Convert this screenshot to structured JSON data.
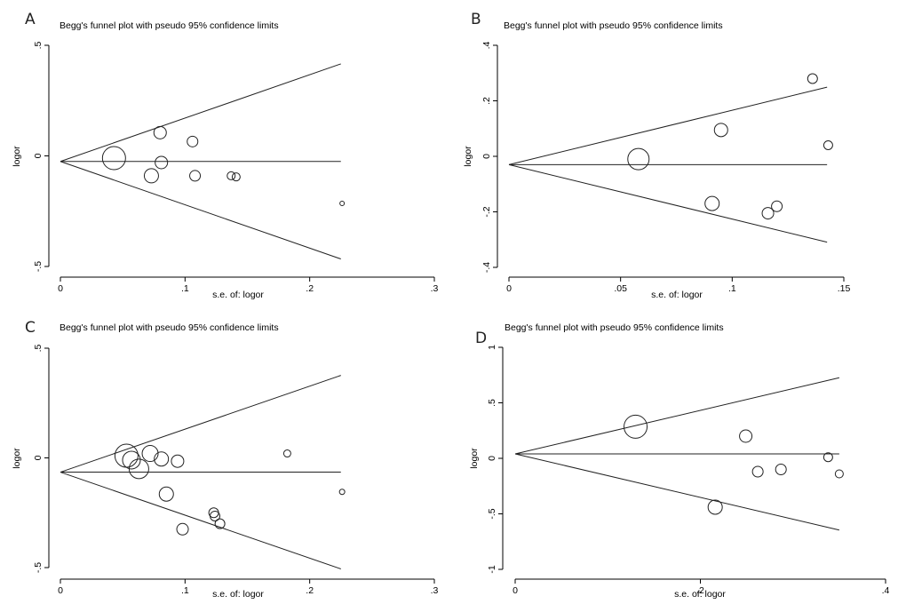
{
  "chart_data": [
    {
      "panel_label": "A",
      "type": "scatter",
      "title": "Begg's funnel plot with pseudo 95% confidence limits",
      "xlabel": "s.e. of: logor",
      "ylabel": "logor",
      "xlim": [
        0,
        0.3
      ],
      "ylim": [
        -0.5,
        0.5
      ],
      "xticks": [
        {
          "v": 0,
          "label": "0"
        },
        {
          "v": 0.1,
          "label": ".1"
        },
        {
          "v": 0.2,
          "label": ".2"
        },
        {
          "v": 0.3,
          "label": ".3"
        }
      ],
      "yticks": [
        {
          "v": -0.5,
          "label": "-.5"
        },
        {
          "v": 0,
          "label": "0"
        },
        {
          "v": 0.5,
          "label": ".5"
        }
      ],
      "pooled_estimate": -0.025,
      "pseudo_limit_max_se": 0.225,
      "points": [
        {
          "se": 0.043,
          "logor": -0.01,
          "size": 13
        },
        {
          "se": 0.073,
          "logor": -0.09,
          "size": 8
        },
        {
          "se": 0.08,
          "logor": 0.105,
          "size": 7
        },
        {
          "se": 0.081,
          "logor": -0.03,
          "size": 7
        },
        {
          "se": 0.106,
          "logor": 0.065,
          "size": 6
        },
        {
          "se": 0.108,
          "logor": -0.09,
          "size": 6
        },
        {
          "se": 0.137,
          "logor": -0.09,
          "size": 4.5
        },
        {
          "se": 0.141,
          "logor": -0.095,
          "size": 4.5
        },
        {
          "se": 0.226,
          "logor": -0.215,
          "size": 2.5
        }
      ]
    },
    {
      "panel_label": "B",
      "type": "scatter",
      "title": "Begg's funnel plot with pseudo 95% confidence limits",
      "xlabel": "s.e. of: logor",
      "ylabel": "logor",
      "xlim": [
        0,
        0.15
      ],
      "ylim": [
        -0.4,
        0.4
      ],
      "xticks": [
        {
          "v": 0,
          "label": "0"
        },
        {
          "v": 0.05,
          "label": ".05"
        },
        {
          "v": 0.1,
          "label": ".1"
        },
        {
          "v": 0.15,
          "label": ".15"
        }
      ],
      "yticks": [
        {
          "v": -0.4,
          "label": "-.4"
        },
        {
          "v": -0.2,
          "label": "-.2"
        },
        {
          "v": 0,
          "label": "0"
        },
        {
          "v": 0.2,
          "label": ".2"
        },
        {
          "v": 0.4,
          "label": ".4"
        }
      ],
      "pooled_estimate": -0.03,
      "pseudo_limit_max_se": 0.1425,
      "points": [
        {
          "se": 0.058,
          "logor": -0.01,
          "size": 12
        },
        {
          "se": 0.091,
          "logor": -0.17,
          "size": 8
        },
        {
          "se": 0.095,
          "logor": 0.095,
          "size": 7.5
        },
        {
          "se": 0.116,
          "logor": -0.205,
          "size": 6.5
        },
        {
          "se": 0.12,
          "logor": -0.18,
          "size": 6
        },
        {
          "se": 0.136,
          "logor": 0.28,
          "size": 5.5
        },
        {
          "se": 0.143,
          "logor": 0.04,
          "size": 5
        }
      ]
    },
    {
      "panel_label": "C",
      "type": "scatter",
      "title": "Begg's funnel plot with pseudo 95% confidence limits",
      "xlabel": "s.e. of: logor",
      "ylabel": "logor",
      "xlim": [
        0,
        0.3
      ],
      "ylim": [
        -0.5,
        0.5
      ],
      "xticks": [
        {
          "v": 0,
          "label": "0"
        },
        {
          "v": 0.1,
          "label": ".1"
        },
        {
          "v": 0.2,
          "label": ".2"
        },
        {
          "v": 0.3,
          "label": ".3"
        }
      ],
      "yticks": [
        {
          "v": -0.5,
          "label": "-.5"
        },
        {
          "v": 0,
          "label": "0"
        },
        {
          "v": 0.5,
          "label": ".5"
        }
      ],
      "pooled_estimate": -0.065,
      "pseudo_limit_max_se": 0.225,
      "points": [
        {
          "se": 0.053,
          "logor": 0.01,
          "size": 13
        },
        {
          "se": 0.057,
          "logor": -0.01,
          "size": 10
        },
        {
          "se": 0.063,
          "logor": -0.05,
          "size": 11
        },
        {
          "se": 0.072,
          "logor": 0.02,
          "size": 9
        },
        {
          "se": 0.081,
          "logor": -0.005,
          "size": 8
        },
        {
          "se": 0.085,
          "logor": -0.165,
          "size": 8
        },
        {
          "se": 0.094,
          "logor": -0.015,
          "size": 7
        },
        {
          "se": 0.098,
          "logor": -0.325,
          "size": 6.5
        },
        {
          "se": 0.123,
          "logor": -0.25,
          "size": 5.5
        },
        {
          "se": 0.124,
          "logor": -0.265,
          "size": 5.5
        },
        {
          "se": 0.128,
          "logor": -0.3,
          "size": 5.5
        },
        {
          "se": 0.182,
          "logor": 0.02,
          "size": 4
        },
        {
          "se": 0.226,
          "logor": -0.155,
          "size": 3
        }
      ]
    },
    {
      "panel_label": "D",
      "type": "scatter",
      "title": "Begg's funnel plot with pseudo 95% confidence limits",
      "xlabel": "s.e. of: logor",
      "ylabel": "logor",
      "xlim": [
        0,
        0.4
      ],
      "ylim": [
        -1,
        1
      ],
      "xticks": [
        {
          "v": 0,
          "label": "0"
        },
        {
          "v": 0.2,
          "label": ".2"
        },
        {
          "v": 0.4,
          "label": ".4"
        }
      ],
      "yticks": [
        {
          "v": -1,
          "label": "-1"
        },
        {
          "v": -0.5,
          "label": "-.5"
        },
        {
          "v": 0,
          "label": "0"
        },
        {
          "v": 0.5,
          "label": ".5"
        },
        {
          "v": 1,
          "label": "1"
        }
      ],
      "pooled_estimate": 0.04,
      "pseudo_limit_max_se": 0.35,
      "points": [
        {
          "se": 0.13,
          "logor": 0.285,
          "size": 13
        },
        {
          "se": 0.216,
          "logor": -0.44,
          "size": 8
        },
        {
          "se": 0.249,
          "logor": 0.2,
          "size": 7
        },
        {
          "se": 0.262,
          "logor": -0.12,
          "size": 6
        },
        {
          "se": 0.287,
          "logor": -0.1,
          "size": 6
        },
        {
          "se": 0.338,
          "logor": 0.01,
          "size": 5
        },
        {
          "se": 0.35,
          "logor": -0.14,
          "size": 4.5
        }
      ]
    }
  ]
}
